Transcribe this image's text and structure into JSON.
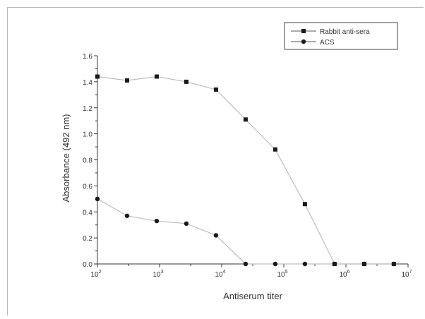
{
  "chart_data": {
    "type": "line",
    "xlabel": "Antiserum titer",
    "ylabel": "Absorbance (492 nm)",
    "x_scale": "log10",
    "xlim": [
      100,
      10000000
    ],
    "ylim": [
      0,
      1.6
    ],
    "x_tick_base": "10",
    "x_ticks": [
      {
        "value": 100,
        "exponent": "2"
      },
      {
        "value": 1000,
        "exponent": "3"
      },
      {
        "value": 10000,
        "exponent": "4"
      },
      {
        "value": 100000,
        "exponent": "5"
      },
      {
        "value": 1000000,
        "exponent": "6"
      },
      {
        "value": 10000000,
        "exponent": "7"
      }
    ],
    "y_ticks": [
      "0.0",
      "0.2",
      "0.4",
      "0.6",
      "0.8",
      "1.0",
      "1.2",
      "1.4",
      "1.6"
    ],
    "grid": false,
    "legend_position": "top-right",
    "x": [
      100,
      300,
      900,
      2700,
      8100,
      24300,
      72900,
      218700,
      656100,
      1968300,
      5904900
    ],
    "series": [
      {
        "name": "Rabbit anti-sera",
        "marker": "square",
        "values": [
          1.44,
          1.41,
          1.44,
          1.4,
          1.34,
          1.11,
          0.88,
          0.46,
          0.0,
          0.0,
          0.0
        ]
      },
      {
        "name": "ACS",
        "marker": "circle",
        "values": [
          0.5,
          0.37,
          0.33,
          0.31,
          0.22,
          0.0,
          0.0,
          0.0,
          0.0,
          0.0,
          0.0
        ]
      }
    ],
    "colors": {
      "line": "#bdbdbd",
      "marker": "#1a1a1a",
      "axis": "#333333"
    }
  }
}
